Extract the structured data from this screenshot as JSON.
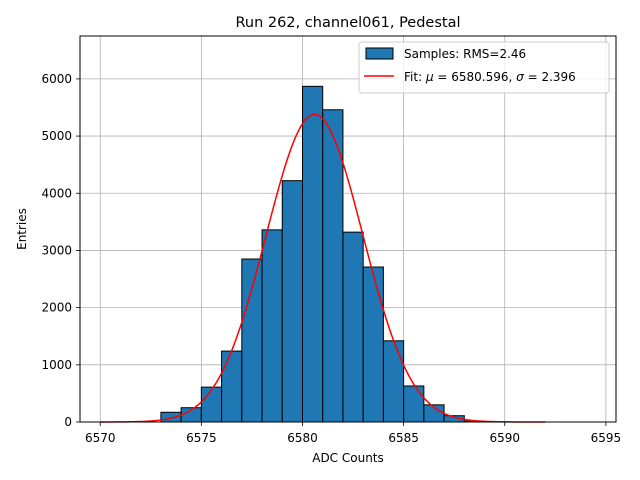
{
  "chart_data": {
    "type": "bar",
    "title": "Run 262, channel061, Pedestal",
    "xlabel": "ADC Counts",
    "ylabel": "Entries",
    "xlim": [
      6569,
      6595.5
    ],
    "ylim": [
      0,
      6750
    ],
    "xticks": [
      6570,
      6575,
      6580,
      6585,
      6590,
      6595
    ],
    "yticks": [
      0,
      1000,
      2000,
      3000,
      4000,
      5000,
      6000
    ],
    "grid": true,
    "legend_position": "top-right",
    "histogram": {
      "name": "Samples: RMS=2.46",
      "color": "#1f77b4",
      "edgecolor": "#000000",
      "bins": [
        {
          "x0": 6573,
          "x1": 6574,
          "count": 170
        },
        {
          "x0": 6574,
          "x1": 6575,
          "count": 250
        },
        {
          "x0": 6575,
          "x1": 6576,
          "count": 610
        },
        {
          "x0": 6576,
          "x1": 6577,
          "count": 1240
        },
        {
          "x0": 6577,
          "x1": 6578,
          "count": 2850
        },
        {
          "x0": 6578,
          "x1": 6579,
          "count": 3360
        },
        {
          "x0": 6579,
          "x1": 6580,
          "count": 4220
        },
        {
          "x0": 6580,
          "x1": 6581,
          "count": 5870
        },
        {
          "x0": 6581,
          "x1": 6582,
          "count": 5460
        },
        {
          "x0": 6582,
          "x1": 6583,
          "count": 3320
        },
        {
          "x0": 6583,
          "x1": 6584,
          "count": 2710
        },
        {
          "x0": 6584,
          "x1": 6585,
          "count": 1420
        },
        {
          "x0": 6585,
          "x1": 6586,
          "count": 630
        },
        {
          "x0": 6586,
          "x1": 6587,
          "count": 300
        },
        {
          "x0": 6587,
          "x1": 6588,
          "count": 110
        },
        {
          "x0": 6588,
          "x1": 6589,
          "count": 15
        }
      ]
    },
    "fit": {
      "name": "Fit: μ = 6580.596, σ = 2.396",
      "name_parts": {
        "prefix": "Fit: ",
        "mu_symbol": "μ",
        "mu_value": " = 6580.596, ",
        "sigma_symbol": "σ",
        "sigma_value": " = 2.396"
      },
      "color": "#ff0000",
      "mu": 6580.596,
      "sigma": 2.396,
      "amplitude": 5380,
      "x_range": [
        6570,
        6592
      ]
    }
  }
}
